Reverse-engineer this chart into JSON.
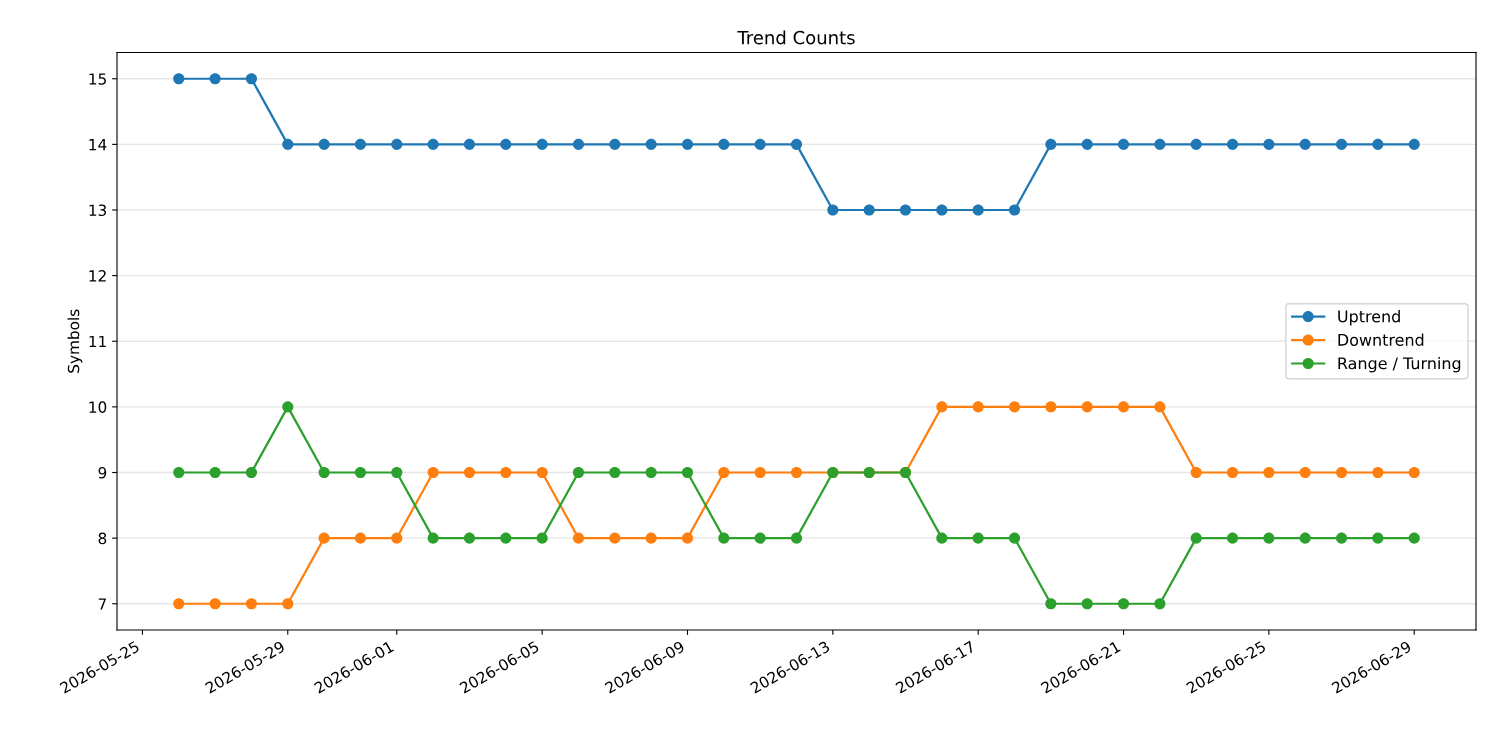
{
  "chart_data": {
    "type": "line",
    "title": "Trend Counts",
    "ylabel": "Symbols",
    "x": [
      "2026-05-26",
      "2026-05-27",
      "2026-05-28",
      "2026-05-29",
      "2026-05-30",
      "2026-05-31",
      "2026-06-01",
      "2026-06-02",
      "2026-06-03",
      "2026-06-04",
      "2026-06-05",
      "2026-06-06",
      "2026-06-07",
      "2026-06-08",
      "2026-06-09",
      "2026-06-10",
      "2026-06-11",
      "2026-06-12",
      "2026-06-13",
      "2026-06-14",
      "2026-06-15",
      "2026-06-16",
      "2026-06-17",
      "2026-06-18",
      "2026-06-19",
      "2026-06-20",
      "2026-06-21",
      "2026-06-22",
      "2026-06-23",
      "2026-06-24",
      "2026-06-25",
      "2026-06-26",
      "2026-06-27",
      "2026-06-28",
      "2026-06-29"
    ],
    "series": [
      {
        "name": "Uptrend",
        "color": "#1f77b4",
        "values": [
          15,
          15,
          15,
          14,
          14,
          14,
          14,
          14,
          14,
          14,
          14,
          14,
          14,
          14,
          14,
          14,
          14,
          14,
          13,
          13,
          13,
          13,
          13,
          13,
          14,
          14,
          14,
          14,
          14,
          14,
          14,
          14,
          14,
          14,
          14
        ]
      },
      {
        "name": "Downtrend",
        "color": "#ff7f0e",
        "values": [
          7,
          7,
          7,
          7,
          8,
          8,
          8,
          9,
          9,
          9,
          9,
          8,
          8,
          8,
          8,
          9,
          9,
          9,
          9,
          9,
          9,
          10,
          10,
          10,
          10,
          10,
          10,
          10,
          9,
          9,
          9,
          9,
          9,
          9,
          9
        ]
      },
      {
        "name": "Range / Turning",
        "color": "#2ca02c",
        "values": [
          9,
          9,
          9,
          10,
          9,
          9,
          9,
          8,
          8,
          8,
          8,
          9,
          9,
          9,
          9,
          8,
          8,
          8,
          9,
          9,
          9,
          8,
          8,
          8,
          7,
          7,
          7,
          7,
          8,
          8,
          8,
          8,
          8,
          8,
          8
        ]
      }
    ],
    "xlim": [
      "2026-05-24T07:12",
      "2026-06-30T16:48"
    ],
    "xticks": [
      "2026-05-25",
      "2026-05-29",
      "2026-06-01",
      "2026-06-05",
      "2026-06-09",
      "2026-06-13",
      "2026-06-17",
      "2026-06-21",
      "2026-06-25",
      "2026-06-29"
    ],
    "ylim": [
      6.6,
      15.4
    ],
    "yticks": [
      7,
      8,
      9,
      10,
      11,
      12,
      13,
      14,
      15
    ],
    "grid": "y",
    "legend": "right",
    "marker": "circle",
    "line_style": "solid"
  }
}
